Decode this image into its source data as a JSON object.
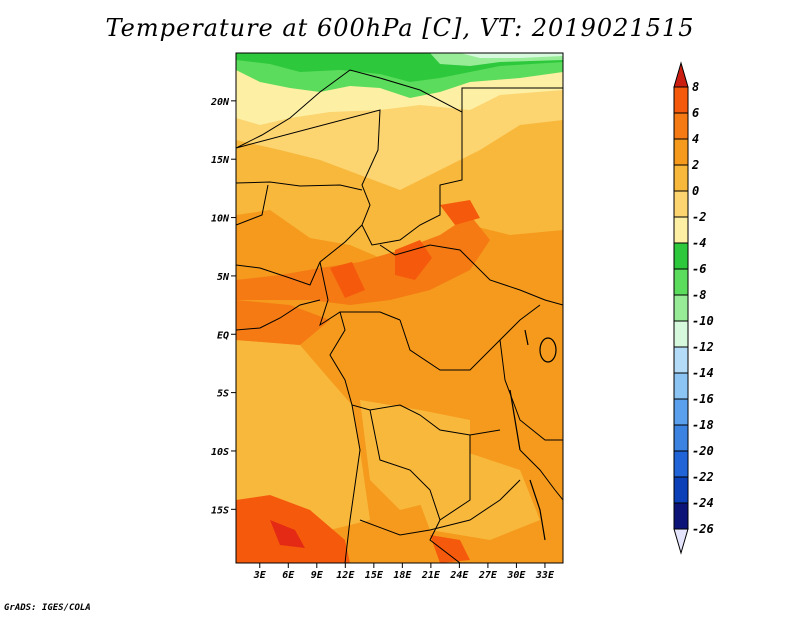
{
  "title": "Temperature at 600hPa [C], VT: 2019021515",
  "credit": "GrADS: IGES/COLA",
  "map": {
    "lat_ticks": [
      {
        "label": "20N",
        "lat": 20
      },
      {
        "label": "15N",
        "lat": 15
      },
      {
        "label": "10N",
        "lat": 10
      },
      {
        "label": "5N",
        "lat": 5
      },
      {
        "label": "EQ",
        "lat": 0
      },
      {
        "label": "5S",
        "lat": -5
      },
      {
        "label": "10S",
        "lat": -10
      },
      {
        "label": "15S",
        "lat": -15
      }
    ],
    "lon_ticks": [
      {
        "label": "3E",
        "lon": 3
      },
      {
        "label": "6E",
        "lon": 6
      },
      {
        "label": "9E",
        "lon": 9
      },
      {
        "label": "12E",
        "lon": 12
      },
      {
        "label": "15E",
        "lon": 15
      },
      {
        "label": "18E",
        "lon": 18
      },
      {
        "label": "21E",
        "lon": 21
      },
      {
        "label": "24E",
        "lon": 24
      },
      {
        "label": "27E",
        "lon": 27
      },
      {
        "label": "30E",
        "lon": 30
      },
      {
        "label": "33E",
        "lon": 33
      }
    ]
  },
  "colorbar": {
    "levels": [
      {
        "label": "8",
        "color": "#e42a14"
      },
      {
        "label": "6",
        "color": "#f55a0c"
      },
      {
        "label": "4",
        "color": "#f57a14"
      },
      {
        "label": "2",
        "color": "#f59a1c"
      },
      {
        "label": "0",
        "color": "#f8b83c"
      },
      {
        "label": "-2",
        "color": "#fcd470"
      },
      {
        "label": "-4",
        "color": "#fdf0a4"
      },
      {
        "label": "-6",
        "color": "#2ec83c"
      },
      {
        "label": "-8",
        "color": "#5cdc5c"
      },
      {
        "label": "-10",
        "color": "#98ec98"
      },
      {
        "label": "-12",
        "color": "#d6f8dc"
      },
      {
        "label": "-14",
        "color": "#b4dcf8"
      },
      {
        "label": "-16",
        "color": "#8cc4f4"
      },
      {
        "label": "-18",
        "color": "#5aa0ec"
      },
      {
        "label": "-20",
        "color": "#3c82e0"
      },
      {
        "label": "-22",
        "color": "#2064d8"
      },
      {
        "label": "-24",
        "color": "#0c40b8"
      },
      {
        "label": "-26",
        "color": "#0c1478"
      }
    ],
    "top_arrow_color": "#cc1e10",
    "bottom_arrow_color": "#e4e4fc"
  }
}
